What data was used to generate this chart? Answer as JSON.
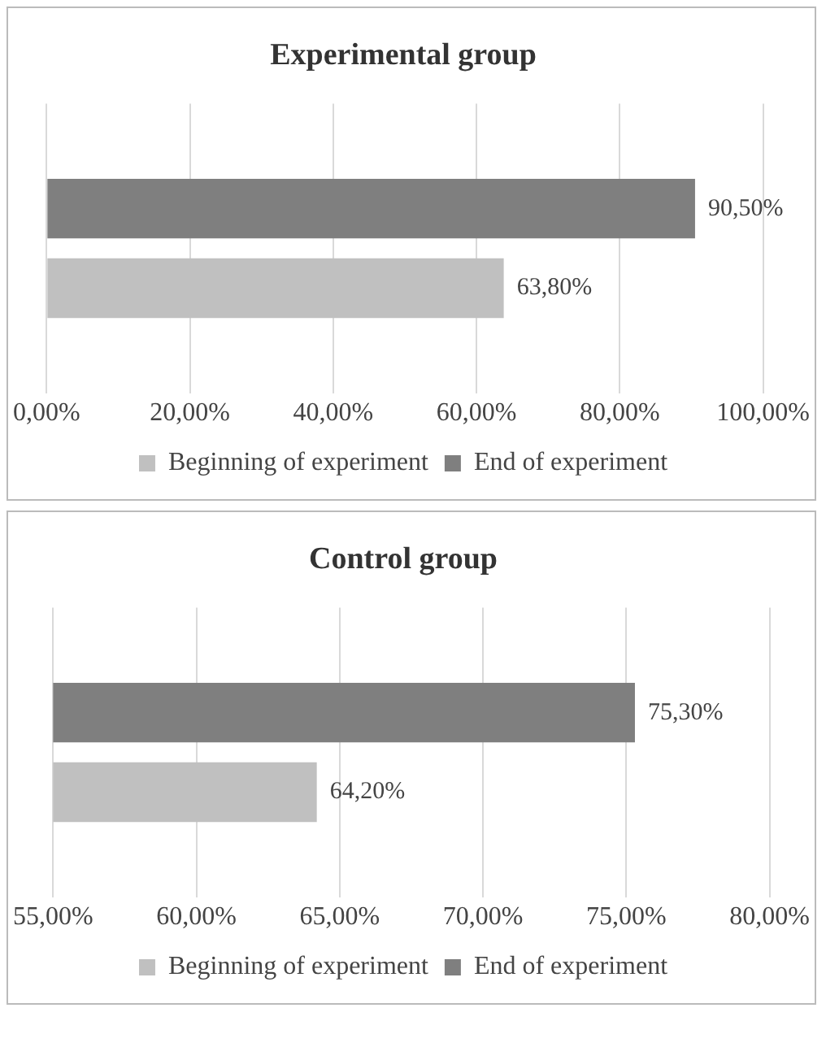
{
  "chart_data": [
    {
      "type": "bar",
      "orientation": "horizontal",
      "title": "Experimental group",
      "categories": [
        null
      ],
      "series": [
        {
          "name": "Beginning of experiment",
          "color": "#c0c0c0",
          "values": [
            63.8
          ],
          "value_labels": [
            "63,80%"
          ]
        },
        {
          "name": "End of experiment",
          "color": "#7f7f7f",
          "values": [
            90.5
          ],
          "value_labels": [
            "90,50%"
          ]
        }
      ],
      "xlim": [
        0,
        100
      ],
      "xticks": [
        {
          "value": 0,
          "label": "0,00%"
        },
        {
          "value": 20,
          "label": "20,00%"
        },
        {
          "value": 40,
          "label": "40,00%"
        },
        {
          "value": 60,
          "label": "60,00%"
        },
        {
          "value": 80,
          "label": "80,00%"
        },
        {
          "value": 100,
          "label": "100,00%"
        }
      ],
      "grid": "x",
      "legend": "bottom"
    },
    {
      "type": "bar",
      "orientation": "horizontal",
      "title": "Control group",
      "categories": [
        null
      ],
      "series": [
        {
          "name": "Beginning of experiment",
          "color": "#c0c0c0",
          "values": [
            64.2
          ],
          "value_labels": [
            "64,20%"
          ]
        },
        {
          "name": "End of experiment",
          "color": "#7f7f7f",
          "values": [
            75.3
          ],
          "value_labels": [
            "75,30%"
          ]
        }
      ],
      "xlim": [
        55,
        80
      ],
      "xticks": [
        {
          "value": 55,
          "label": "55,00%"
        },
        {
          "value": 60,
          "label": "60,00%"
        },
        {
          "value": 65,
          "label": "65,00%"
        },
        {
          "value": 70,
          "label": "70,00%"
        },
        {
          "value": 75,
          "label": "75,00%"
        },
        {
          "value": 80,
          "label": "80,00%"
        }
      ],
      "grid": "x",
      "legend": "bottom"
    }
  ]
}
